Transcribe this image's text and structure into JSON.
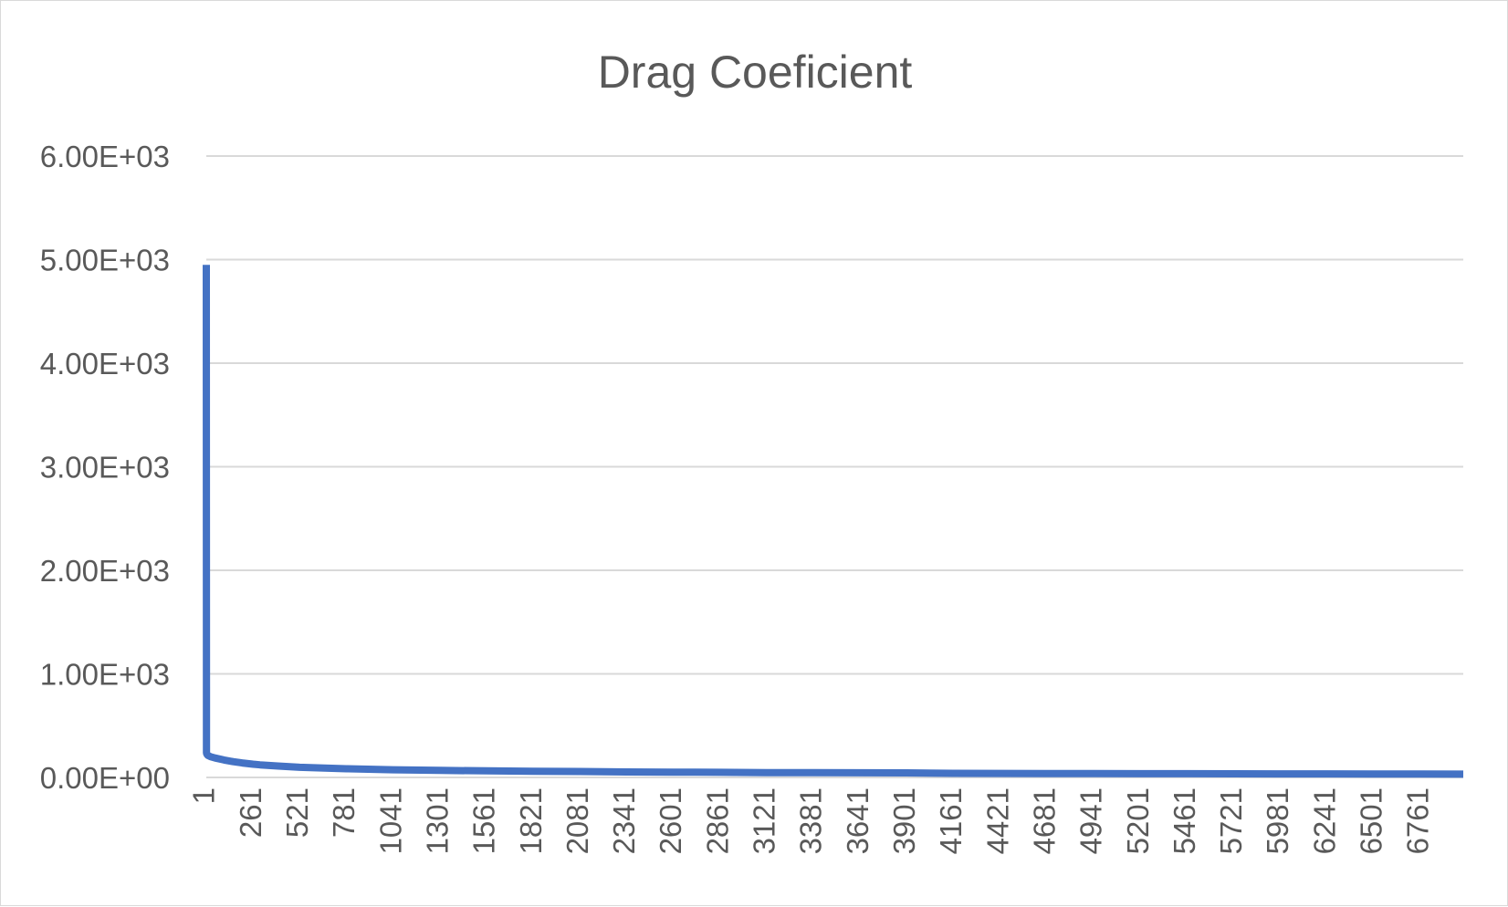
{
  "chart_data": {
    "type": "line",
    "title": "Drag Coeficient",
    "xlabel": "",
    "ylabel": "",
    "y_tick_labels": [
      "0.00E+00",
      "1.00E+03",
      "2.00E+03",
      "3.00E+03",
      "4.00E+03",
      "5.00E+03",
      "6.00E+03"
    ],
    "ylim": [
      0,
      6000
    ],
    "x_tick_labels": [
      "1",
      "261",
      "521",
      "781",
      "1041",
      "1301",
      "1561",
      "1821",
      "2081",
      "2341",
      "2601",
      "2861",
      "3121",
      "3381",
      "3641",
      "3901",
      "4161",
      "4421",
      "4681",
      "4941",
      "5201",
      "5461",
      "5721",
      "5981",
      "6241",
      "6501",
      "6761"
    ],
    "xlim": [
      1,
      7000
    ],
    "grid": true,
    "legend": "none",
    "series": [
      {
        "color": "#4472c4",
        "x": [
          1,
          2,
          3,
          5,
          10,
          25,
          50,
          100,
          150,
          200,
          261,
          300,
          400,
          521,
          700,
          781,
          1041,
          1301,
          1561,
          1821,
          2081,
          2341,
          2601,
          2861,
          3121,
          3381,
          3641,
          3901,
          4161,
          4421,
          4681,
          4941,
          5201,
          5461,
          5721,
          5981,
          6241,
          6501,
          6761,
          7000
        ],
        "y": [
          4950,
          240,
          230,
          222,
          212,
          200,
          188,
          168,
          152,
          140,
          128,
          122,
          110,
          98,
          88,
          84,
          74,
          68,
          63,
          60,
          57,
          53,
          51,
          49,
          47,
          46,
          45,
          44,
          40,
          39,
          38,
          37,
          36,
          36,
          35,
          34,
          34,
          33,
          33,
          32
        ]
      }
    ]
  }
}
